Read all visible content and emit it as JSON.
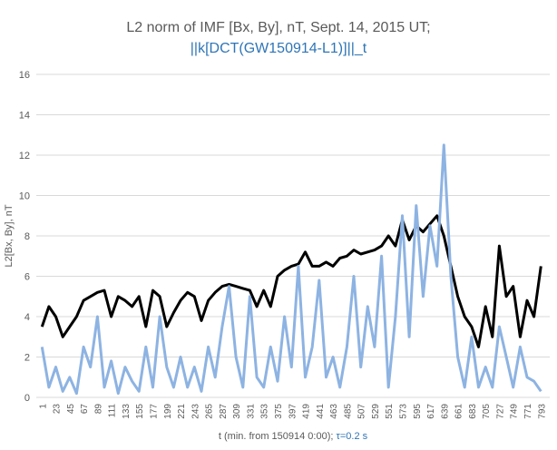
{
  "chart_data": {
    "type": "line",
    "title": "L2 norm of IMF [Bx, By], nT, Sept. 14, 2015 UT;",
    "subtitle": "||k[DCT(GW150914-L1)]||_t",
    "subtitle_color": "#2e75b6",
    "xlabel": "t (min. from 150914 0:00); ",
    "xlabel_note": "τ=0.2 s",
    "ylabel": "L2[Bx, By], nT",
    "x": [
      1,
      12,
      23,
      34,
      45,
      56,
      67,
      78,
      89,
      100,
      111,
      122,
      133,
      144,
      155,
      166,
      177,
      188,
      199,
      210,
      221,
      232,
      243,
      254,
      265,
      276,
      287,
      298,
      309,
      320,
      331,
      342,
      353,
      364,
      375,
      386,
      397,
      408,
      419,
      430,
      441,
      452,
      463,
      474,
      485,
      496,
      507,
      518,
      529,
      540,
      551,
      562,
      573,
      584,
      595,
      606,
      617,
      628,
      639,
      650,
      661,
      672,
      683,
      694,
      705,
      716,
      727,
      738,
      749,
      760,
      771,
      782,
      793
    ],
    "series": [
      {
        "name": "L2 norm of IMF [Bx, By]",
        "color": "#000000",
        "values": [
          3.5,
          4.5,
          4.0,
          3.0,
          3.5,
          4.0,
          4.8,
          5.0,
          5.2,
          5.3,
          4.0,
          5.0,
          4.8,
          4.5,
          5.0,
          3.5,
          5.3,
          5.0,
          3.5,
          4.2,
          4.8,
          5.2,
          5.0,
          3.8,
          4.8,
          5.2,
          5.5,
          5.6,
          5.5,
          5.4,
          5.3,
          4.5,
          5.3,
          4.5,
          6.0,
          6.3,
          6.5,
          6.6,
          7.2,
          6.5,
          6.5,
          6.7,
          6.5,
          6.9,
          7.0,
          7.3,
          7.1,
          7.2,
          7.3,
          7.5,
          8.0,
          7.5,
          8.8,
          7.8,
          8.5,
          8.2,
          8.6,
          9.0,
          8.0,
          6.5,
          5.0,
          4.0,
          3.5,
          2.5,
          4.5,
          3.0,
          7.5,
          5.0,
          5.5,
          3.0,
          4.8,
          4.0,
          6.5
        ]
      },
      {
        "name": "||k[DCT(GW150914-L1)]||_t",
        "color": "#8db3e2",
        "values": [
          2.5,
          0.5,
          1.5,
          0.3,
          1.0,
          0.2,
          2.5,
          1.5,
          4.0,
          0.5,
          1.8,
          0.2,
          1.5,
          0.8,
          0.3,
          2.5,
          0.5,
          4.0,
          1.5,
          0.5,
          2.0,
          0.5,
          1.5,
          0.3,
          2.5,
          1.0,
          3.5,
          5.5,
          2.0,
          0.5,
          5.0,
          1.0,
          0.5,
          2.5,
          0.8,
          4.0,
          1.5,
          6.5,
          1.0,
          2.5,
          5.8,
          1.0,
          2.0,
          0.5,
          2.5,
          6.0,
          1.5,
          4.5,
          2.5,
          7.0,
          0.5,
          4.0,
          9.0,
          3.0,
          9.5,
          5.0,
          8.5,
          6.5,
          12.5,
          6.0,
          2.0,
          0.5,
          3.0,
          0.5,
          1.5,
          0.5,
          3.5,
          2.0,
          0.5,
          2.5,
          1.0,
          0.8,
          0.3
        ]
      }
    ],
    "xlim": [
      -8,
      807
    ],
    "xticks": [
      1,
      23,
      45,
      67,
      89,
      111,
      133,
      155,
      177,
      199,
      221,
      243,
      265,
      287,
      309,
      331,
      353,
      375,
      397,
      419,
      441,
      463,
      485,
      507,
      529,
      551,
      573,
      595,
      617,
      639,
      661,
      683,
      705,
      727,
      749,
      771,
      793
    ],
    "ylim": [
      0,
      16
    ],
    "yticks": [
      0,
      2,
      4,
      6,
      8,
      10,
      12,
      14,
      16
    ],
    "grid": true
  }
}
